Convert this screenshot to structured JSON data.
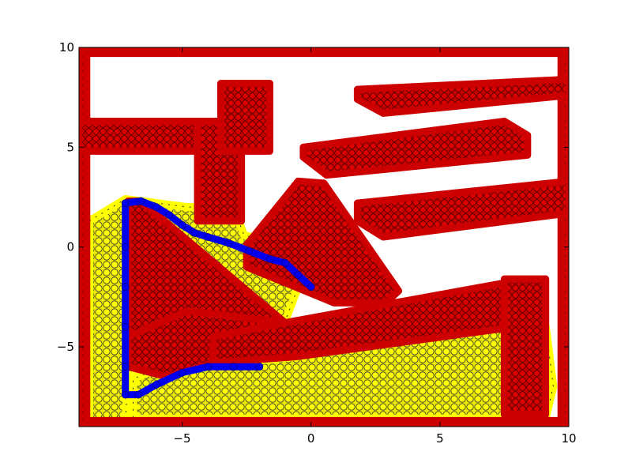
{
  "chart_data": {
    "type": "scatter",
    "title": "",
    "xlabel": "",
    "ylabel": "",
    "xlim": [
      -9,
      10
    ],
    "ylim": [
      -9,
      10
    ],
    "grid": false,
    "x_ticks": [
      {
        "value": -5,
        "label": "−5"
      },
      {
        "value": 0,
        "label": "0"
      },
      {
        "value": 5,
        "label": "5"
      },
      {
        "value": 10,
        "label": "10"
      }
    ],
    "y_ticks": [
      {
        "value": -5,
        "label": "−5"
      },
      {
        "value": 0,
        "label": "0"
      },
      {
        "value": 5,
        "label": "5"
      },
      {
        "value": 10,
        "label": "10"
      }
    ],
    "series": [
      {
        "role": "obstacles",
        "color": "#cc0000",
        "edge_color": "#e00000",
        "marker": "circle",
        "regions": [
          {
            "shape": "polygon",
            "points": [
              [
                -9,
                -9
              ],
              [
                10,
                -9
              ],
              [
                10,
                -8.7
              ],
              [
                -9,
                -8.7
              ]
            ]
          },
          {
            "shape": "polygon",
            "points": [
              [
                -9,
                9.7
              ],
              [
                10,
                9.7
              ],
              [
                10,
                10
              ],
              [
                -9,
                10
              ]
            ]
          },
          {
            "shape": "polygon",
            "points": [
              [
                -9,
                -9
              ],
              [
                -8.7,
                -9
              ],
              [
                -8.7,
                10
              ],
              [
                -9,
                10
              ]
            ]
          },
          {
            "shape": "polygon",
            "points": [
              [
                9.7,
                -9
              ],
              [
                10,
                -9
              ],
              [
                10,
                10
              ],
              [
                9.7,
                10
              ]
            ]
          },
          {
            "shape": "polygon",
            "points": [
              [
                -9,
                4.8
              ],
              [
                -3.3,
                4.8
              ],
              [
                -3.3,
                6.3
              ],
              [
                -9,
                6.3
              ]
            ]
          },
          {
            "shape": "polygon",
            "points": [
              [
                -4.4,
                1.3
              ],
              [
                -2.7,
                1.3
              ],
              [
                -2.7,
                6.3
              ],
              [
                -4.4,
                6.3
              ]
            ]
          },
          {
            "shape": "polygon",
            "points": [
              [
                -3.5,
                4.8
              ],
              [
                -1.6,
                4.8
              ],
              [
                -1.6,
                8.2
              ],
              [
                -3.5,
                8.2
              ]
            ]
          },
          {
            "shape": "polygon",
            "points": [
              [
                1.8,
                7.9
              ],
              [
                10,
                8.4
              ],
              [
                10,
                7.6
              ],
              [
                2.8,
                6.7
              ],
              [
                1.8,
                7.4
              ]
            ]
          },
          {
            "shape": "polygon",
            "points": [
              [
                -0.3,
                5.0
              ],
              [
                7.5,
                6.3
              ],
              [
                8.4,
                5.6
              ],
              [
                8.4,
                4.6
              ],
              [
                0.6,
                3.6
              ],
              [
                -0.3,
                4.5
              ]
            ]
          },
          {
            "shape": "polygon",
            "points": [
              [
                1.8,
                2.2
              ],
              [
                10,
                3.3
              ],
              [
                10,
                1.7
              ],
              [
                2.8,
                0.5
              ],
              [
                1.8,
                1.3
              ]
            ]
          },
          {
            "shape": "polygon",
            "points": [
              [
                -2.5,
                0.1
              ],
              [
                -0.5,
                3.3
              ],
              [
                0.5,
                3.2
              ],
              [
                3.4,
                -2.2
              ],
              [
                2.9,
                -2.8
              ],
              [
                0.9,
                -2.8
              ],
              [
                -2.5,
                -1.0
              ]
            ]
          },
          {
            "shape": "polygon",
            "points": [
              [
                -7.1,
                2.3
              ],
              [
                -6.6,
                2.3
              ],
              [
                -1.0,
                -3.8
              ],
              [
                -1.0,
                -4.8
              ],
              [
                -7.1,
                -6.0
              ]
            ]
          },
          {
            "shape": "polygon",
            "points": [
              [
                -7.1,
                -6.0
              ],
              [
                -7.1,
                -4.5
              ],
              [
                -4.8,
                -3.2
              ],
              [
                -1.0,
                -3.8
              ],
              [
                -1.0,
                -4.8
              ],
              [
                -5.6,
                -6.5
              ]
            ]
          },
          {
            "shape": "polygon",
            "points": [
              [
                -3.8,
                -4.5
              ],
              [
                -0.6,
                -3.7
              ],
              [
                7.5,
                -1.8
              ],
              [
                9.1,
                -1.6
              ],
              [
                9.1,
                -3.8
              ],
              [
                -0.6,
                -5.5
              ],
              [
                -3.8,
                -5.8
              ]
            ]
          },
          {
            "shape": "polygon",
            "points": [
              [
                7.5,
                -1.6
              ],
              [
                9.1,
                -1.6
              ],
              [
                9.1,
                -8.4
              ],
              [
                7.5,
                -8.4
              ]
            ]
          }
        ]
      },
      {
        "role": "explored",
        "color": "#ffff00",
        "edge_color": "#222222",
        "marker": "circle",
        "regions": [
          {
            "shape": "polygon",
            "points": [
              [
                -8.6,
                1.3
              ],
              [
                -7.2,
                2.4
              ],
              [
                -6.6,
                2.3
              ],
              [
                -4.8,
                2.0
              ],
              [
                -3.0,
                2.0
              ],
              [
                -2.6,
                0.6
              ],
              [
                -1.5,
                0.2
              ],
              [
                -0.5,
                -2.0
              ],
              [
                -1.0,
                -3.7
              ],
              [
                -3.0,
                -4.6
              ],
              [
                -6.9,
                -6.6
              ],
              [
                -6.9,
                -8.6
              ],
              [
                9.1,
                -8.6
              ],
              [
                9.4,
                -7.0
              ],
              [
                9.1,
                -3.9
              ],
              [
                7.5,
                -3.4
              ],
              [
                3.0,
                -4.3
              ],
              [
                -0.6,
                -5.5
              ],
              [
                -3.6,
                -5.9
              ],
              [
                -7.1,
                -6.2
              ],
              [
                -7.2,
                -8.9
              ],
              [
                -8.6,
                -8.9
              ]
            ]
          },
          {
            "shape": "polygon",
            "points": [
              [
                -7.1,
                0.0
              ],
              [
                -6.7,
                0.0
              ],
              [
                -4.9,
                -3.2
              ],
              [
                -7.1,
                -4.4
              ]
            ]
          }
        ]
      },
      {
        "role": "path",
        "color": "#0000ee",
        "edge_color": "#000088",
        "marker": "circle",
        "points": [
          [
            -2.0,
            -6.0
          ],
          [
            -3.0,
            -6.0
          ],
          [
            -4.0,
            -6.0
          ],
          [
            -5.0,
            -6.3
          ],
          [
            -6.0,
            -6.9
          ],
          [
            -6.7,
            -7.4
          ],
          [
            -7.2,
            -7.4
          ],
          [
            -7.2,
            -6.0
          ],
          [
            -7.2,
            -4.0
          ],
          [
            -7.2,
            -2.0
          ],
          [
            -7.2,
            0.0
          ],
          [
            -7.2,
            2.2
          ],
          [
            -6.6,
            2.3
          ],
          [
            -6.0,
            2.0
          ],
          [
            -5.5,
            1.6
          ],
          [
            -5.0,
            1.1
          ],
          [
            -4.5,
            0.7
          ],
          [
            -4.0,
            0.5
          ],
          [
            -3.2,
            0.2
          ],
          [
            -2.4,
            -0.2
          ],
          [
            -1.6,
            -0.6
          ],
          [
            -1.0,
            -0.8
          ],
          [
            -0.5,
            -1.4
          ],
          [
            0.0,
            -2.0
          ]
        ]
      }
    ]
  }
}
